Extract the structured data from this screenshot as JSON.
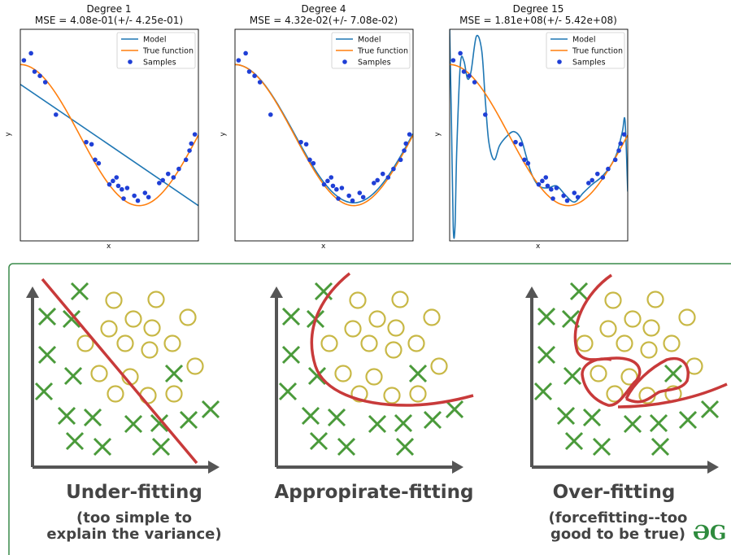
{
  "chart_data": [
    {
      "type": "line",
      "title": "Degree 1",
      "subtitle": "MSE = 4.08e-01(+/- 4.25e-01)",
      "xlabel": "x",
      "ylabel": "y",
      "xlim": [
        0,
        1
      ],
      "ylim": [
        -1.5,
        1.5
      ],
      "legend_position": "top-right",
      "legend": [
        "Model",
        "True function",
        "Samples"
      ],
      "series": [
        {
          "name": "Model",
          "color": "#1f77b4",
          "x": [
            0,
            1
          ],
          "y": [
            0.72,
            -1.0
          ]
        },
        {
          "name": "True function",
          "color": "#ff7f0e",
          "function": "cos(1.5*pi*x)"
        },
        {
          "name": "Samples",
          "color": "#1f3fd6",
          "x": [
            0.02,
            0.06,
            0.08,
            0.11,
            0.14,
            0.2,
            0.37,
            0.4,
            0.42,
            0.44,
            0.5,
            0.52,
            0.54,
            0.55,
            0.57,
            0.58,
            0.6,
            0.64,
            0.66,
            0.7,
            0.72,
            0.78,
            0.8,
            0.83,
            0.86,
            0.89,
            0.93,
            0.95,
            0.96,
            0.98
          ],
          "y": [
            1.06,
            1.16,
            0.9,
            0.84,
            0.75,
            0.29,
            -0.1,
            -0.13,
            -0.35,
            -0.4,
            -0.7,
            -0.65,
            -0.6,
            -0.72,
            -0.77,
            -0.9,
            -0.75,
            -0.86,
            -0.93,
            -0.82,
            -0.88,
            -0.68,
            -0.64,
            -0.55,
            -0.6,
            -0.48,
            -0.35,
            -0.22,
            -0.12,
            0.01
          ]
        }
      ]
    },
    {
      "type": "line",
      "title": "Degree 4",
      "subtitle": "MSE = 4.32e-02(+/- 7.08e-02)",
      "xlabel": "x",
      "ylabel": "y",
      "xlim": [
        0,
        1
      ],
      "ylim": [
        -1.5,
        1.5
      ],
      "legend_position": "top-right",
      "legend": [
        "Model",
        "True function",
        "Samples"
      ],
      "series": [
        {
          "name": "Model",
          "color": "#1f77b4",
          "function": "poly4 fit"
        },
        {
          "name": "True function",
          "color": "#ff7f0e",
          "function": "cos(1.5*pi*x)"
        },
        {
          "name": "Samples",
          "color": "#1f3fd6",
          "x": [
            0.02,
            0.06,
            0.08,
            0.11,
            0.14,
            0.2,
            0.37,
            0.4,
            0.42,
            0.44,
            0.5,
            0.52,
            0.54,
            0.55,
            0.57,
            0.58,
            0.6,
            0.64,
            0.66,
            0.7,
            0.72,
            0.78,
            0.8,
            0.83,
            0.86,
            0.89,
            0.93,
            0.95,
            0.96,
            0.98
          ],
          "y": [
            1.06,
            1.16,
            0.9,
            0.84,
            0.75,
            0.29,
            -0.1,
            -0.13,
            -0.35,
            -0.4,
            -0.7,
            -0.65,
            -0.6,
            -0.72,
            -0.77,
            -0.9,
            -0.75,
            -0.86,
            -0.93,
            -0.82,
            -0.88,
            -0.68,
            -0.64,
            -0.55,
            -0.6,
            -0.48,
            -0.35,
            -0.22,
            -0.12,
            0.01
          ]
        }
      ]
    },
    {
      "type": "line",
      "title": "Degree 15",
      "subtitle": "MSE = 1.81e+08(+/- 5.42e+08)",
      "xlabel": "x",
      "ylabel": "y",
      "xlim": [
        0,
        1
      ],
      "ylim": [
        -1.5,
        1.5
      ],
      "legend_position": "top-right",
      "legend": [
        "Model",
        "True function",
        "Samples"
      ],
      "series": [
        {
          "name": "Model",
          "color": "#1f77b4",
          "x": [
            0.0,
            0.01,
            0.02,
            0.03,
            0.04,
            0.06,
            0.08,
            0.1,
            0.12,
            0.15,
            0.18,
            0.2,
            0.22,
            0.25,
            0.28,
            0.32,
            0.36,
            0.4,
            0.43,
            0.46,
            0.5,
            0.55,
            0.6,
            0.65,
            0.7,
            0.75,
            0.8,
            0.85,
            0.9,
            0.94,
            0.97,
            0.985,
            1.0
          ],
          "y": [
            1.5,
            0.2,
            -1.3,
            -1.3,
            -0.2,
            1.0,
            1.05,
            0.8,
            0.9,
            1.4,
            1.2,
            0.5,
            -0.1,
            -0.35,
            -0.15,
            -0.02,
            0.05,
            -0.05,
            -0.3,
            -0.55,
            -0.72,
            -0.75,
            -0.72,
            -0.85,
            -0.95,
            -0.82,
            -0.7,
            -0.6,
            -0.45,
            -0.25,
            0.05,
            0.2,
            -0.8
          ]
        },
        {
          "name": "True function",
          "color": "#ff7f0e",
          "function": "cos(1.5*pi*x)"
        },
        {
          "name": "Samples",
          "color": "#1f3fd6",
          "x": [
            0.02,
            0.06,
            0.08,
            0.11,
            0.14,
            0.2,
            0.37,
            0.4,
            0.42,
            0.44,
            0.5,
            0.52,
            0.54,
            0.55,
            0.57,
            0.58,
            0.6,
            0.64,
            0.66,
            0.7,
            0.72,
            0.78,
            0.8,
            0.83,
            0.86,
            0.89,
            0.93,
            0.95,
            0.96,
            0.98
          ],
          "y": [
            1.06,
            1.16,
            0.9,
            0.84,
            0.75,
            0.29,
            -0.1,
            -0.13,
            -0.35,
            -0.4,
            -0.7,
            -0.65,
            -0.6,
            -0.72,
            -0.77,
            -0.9,
            -0.75,
            -0.86,
            -0.93,
            -0.82,
            -0.88,
            -0.68,
            -0.64,
            -0.55,
            -0.6,
            -0.48,
            -0.35,
            -0.22,
            -0.12,
            0.01
          ]
        }
      ]
    }
  ],
  "illustration": {
    "panels": [
      {
        "title": "Under-fitting",
        "subtitle_lines": [
          "(too simple to",
          "explain the variance)"
        ]
      },
      {
        "title": "Appropirate-fitting",
        "subtitle_lines": []
      },
      {
        "title": "Over-fitting",
        "subtitle_lines": [
          "(forcefitting--too",
          "good to be true)"
        ]
      }
    ],
    "logo_text": "ƏG",
    "colors": {
      "cross": "#4a9a3a",
      "circle": "#c8b846",
      "boundary": "#c83a3a",
      "frame": "#3a8a4a",
      "axis": "#555555"
    }
  }
}
